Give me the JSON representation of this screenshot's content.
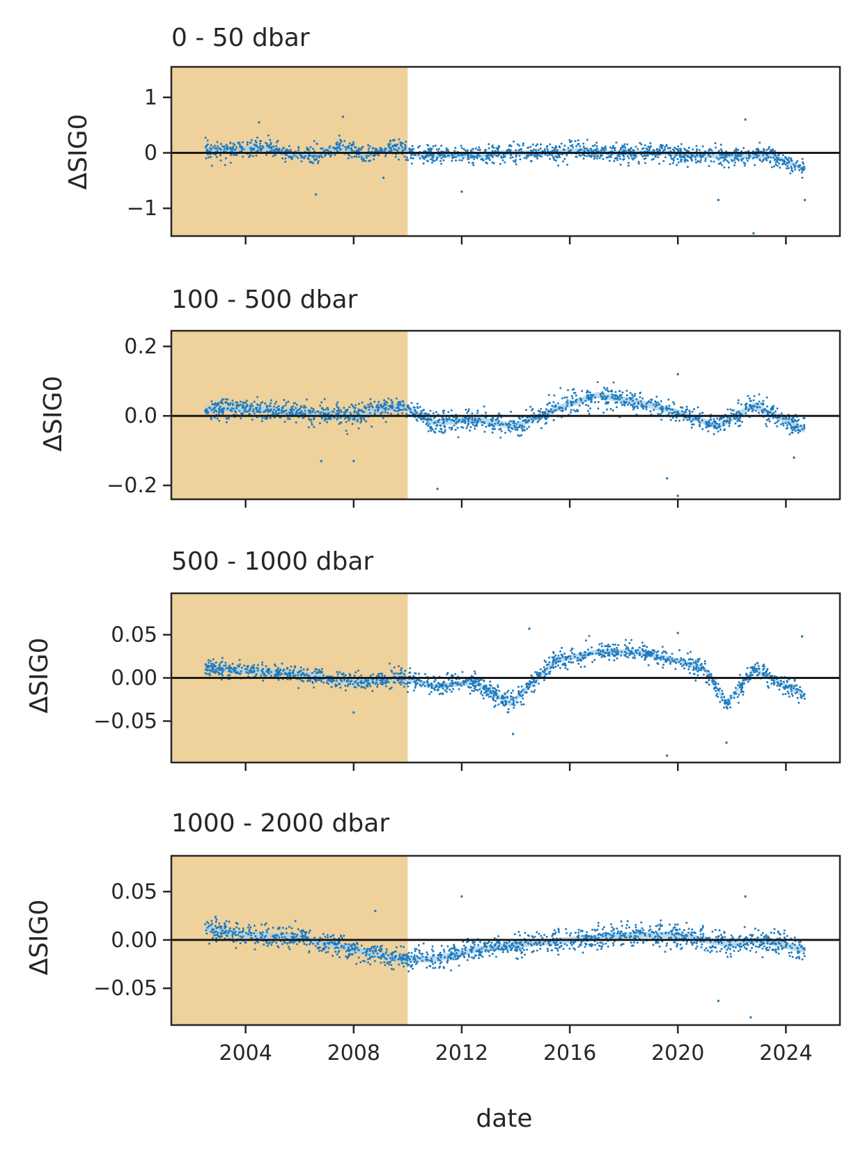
{
  "chart_data": {
    "type": "scatter",
    "xlabel": "date",
    "x_tick_labels": [
      "2004",
      "2008",
      "2012",
      "2016",
      "2020",
      "2024"
    ],
    "x_ticks": [
      2004,
      2008,
      2012,
      2016,
      2020,
      2024
    ],
    "xlim": [
      2001.25,
      2026.0
    ],
    "shaded_period": [
      2001.25,
      2010.0
    ],
    "shade_color": "#efd19b",
    "point_color": "#1f7bbf",
    "band_color": "#a9cfe8",
    "zero_line_color": "#1a1a1a",
    "panels": [
      {
        "title": "0 - 50 dbar",
        "ylabel": "ΔSIG0",
        "ylim": [
          -1.5,
          1.55
        ],
        "y_ticks": [
          1,
          0,
          -1
        ],
        "y_tick_labels": [
          "1",
          "0",
          "−1"
        ],
        "mean_x": [
          2002.5,
          2003.5,
          2004.5,
          2005.5,
          2006.5,
          2007.5,
          2008.5,
          2009.5,
          2010.5,
          2011.5,
          2012.5,
          2013.5,
          2014.5,
          2015.5,
          2016.5,
          2017.5,
          2018.5,
          2019.5,
          2020.5,
          2021.5,
          2022.5,
          2023.5,
          2024.7
        ],
        "mean_y": [
          0.05,
          0.05,
          0.1,
          0.0,
          -0.05,
          0.1,
          -0.05,
          0.1,
          -0.05,
          -0.05,
          -0.05,
          0.0,
          0.0,
          0.0,
          0.05,
          0.0,
          0.0,
          0.0,
          -0.05,
          -0.05,
          -0.05,
          -0.05,
          -0.3
        ],
        "spread": 0.18,
        "outliers": [
          [
            2004.5,
            0.55
          ],
          [
            2006.6,
            -0.75
          ],
          [
            2007.6,
            0.65
          ],
          [
            2009.1,
            -0.45
          ],
          [
            2012.0,
            -0.7
          ],
          [
            2021.5,
            -0.85
          ],
          [
            2022.5,
            0.6
          ],
          [
            2022.8,
            -1.45
          ],
          [
            2024.7,
            -0.85
          ]
        ]
      },
      {
        "title": "100 - 500 dbar",
        "ylabel": "ΔSIG0",
        "ylim": [
          -0.24,
          0.245
        ],
        "y_ticks": [
          0.2,
          0.0,
          -0.2
        ],
        "y_tick_labels": [
          "0.2",
          "0.0",
          "−0.2"
        ],
        "mean_x": [
          2002.5,
          2004.0,
          2006.0,
          2008.0,
          2009.8,
          2011.0,
          2012.5,
          2014.0,
          2015.5,
          2017.0,
          2018.5,
          2020.0,
          2021.5,
          2022.8,
          2024.7
        ],
        "mean_y": [
          0.02,
          0.02,
          0.01,
          0.0,
          0.03,
          -0.02,
          -0.01,
          -0.03,
          0.02,
          0.06,
          0.04,
          0.01,
          -0.03,
          0.03,
          -0.04
        ],
        "spread": 0.035,
        "outliers": [
          [
            2006.8,
            -0.13
          ],
          [
            2008.0,
            -0.13
          ],
          [
            2011.1,
            -0.21
          ],
          [
            2019.6,
            -0.18
          ],
          [
            2020.0,
            0.12
          ],
          [
            2020.0,
            -0.23
          ],
          [
            2024.3,
            -0.12
          ]
        ]
      },
      {
        "title": "500 - 1000 dbar",
        "ylabel": "ΔSIG0",
        "ylim": [
          -0.098,
          0.098
        ],
        "y_ticks": [
          0.05,
          0.0,
          -0.05
        ],
        "y_tick_labels": [
          "0.05",
          "0.00",
          "−0.05"
        ],
        "mean_x": [
          2002.5,
          2004.0,
          2006.0,
          2008.0,
          2009.8,
          2011.0,
          2012.5,
          2013.8,
          2014.5,
          2015.5,
          2017.0,
          2018.5,
          2020.0,
          2021.0,
          2021.8,
          2022.8,
          2024.7
        ],
        "mean_y": [
          0.012,
          0.008,
          0.005,
          -0.005,
          0.0,
          -0.01,
          -0.005,
          -0.03,
          -0.01,
          0.02,
          0.03,
          0.03,
          0.02,
          0.01,
          -0.03,
          0.01,
          -0.02
        ],
        "spread": 0.012,
        "outliers": [
          [
            2008.0,
            -0.04
          ],
          [
            2013.9,
            -0.065
          ],
          [
            2014.5,
            0.057
          ],
          [
            2019.6,
            -0.09
          ],
          [
            2020.0,
            0.052
          ],
          [
            2021.8,
            -0.075
          ],
          [
            2024.6,
            0.048
          ]
        ]
      },
      {
        "title": "1000 - 2000 dbar",
        "ylabel": "ΔSIG0",
        "ylim": [
          -0.088,
          0.087
        ],
        "y_ticks": [
          0.05,
          0.0,
          -0.05
        ],
        "y_tick_labels": [
          "0.05",
          "0.00",
          "−0.05"
        ],
        "mean_x": [
          2002.5,
          2004.0,
          2006.0,
          2008.0,
          2009.8,
          2011.0,
          2012.5,
          2014.0,
          2016.0,
          2018.0,
          2020.0,
          2022.0,
          2023.0,
          2024.7
        ],
        "mean_y": [
          0.012,
          0.005,
          0.003,
          -0.01,
          -0.02,
          -0.02,
          -0.01,
          -0.005,
          0.0,
          0.005,
          0.005,
          -0.005,
          0.0,
          -0.01
        ],
        "spread": 0.013,
        "outliers": [
          [
            2008.8,
            0.03
          ],
          [
            2012.0,
            0.045
          ],
          [
            2021.5,
            -0.063
          ],
          [
            2022.5,
            0.045
          ],
          [
            2022.7,
            -0.08
          ]
        ]
      }
    ]
  }
}
